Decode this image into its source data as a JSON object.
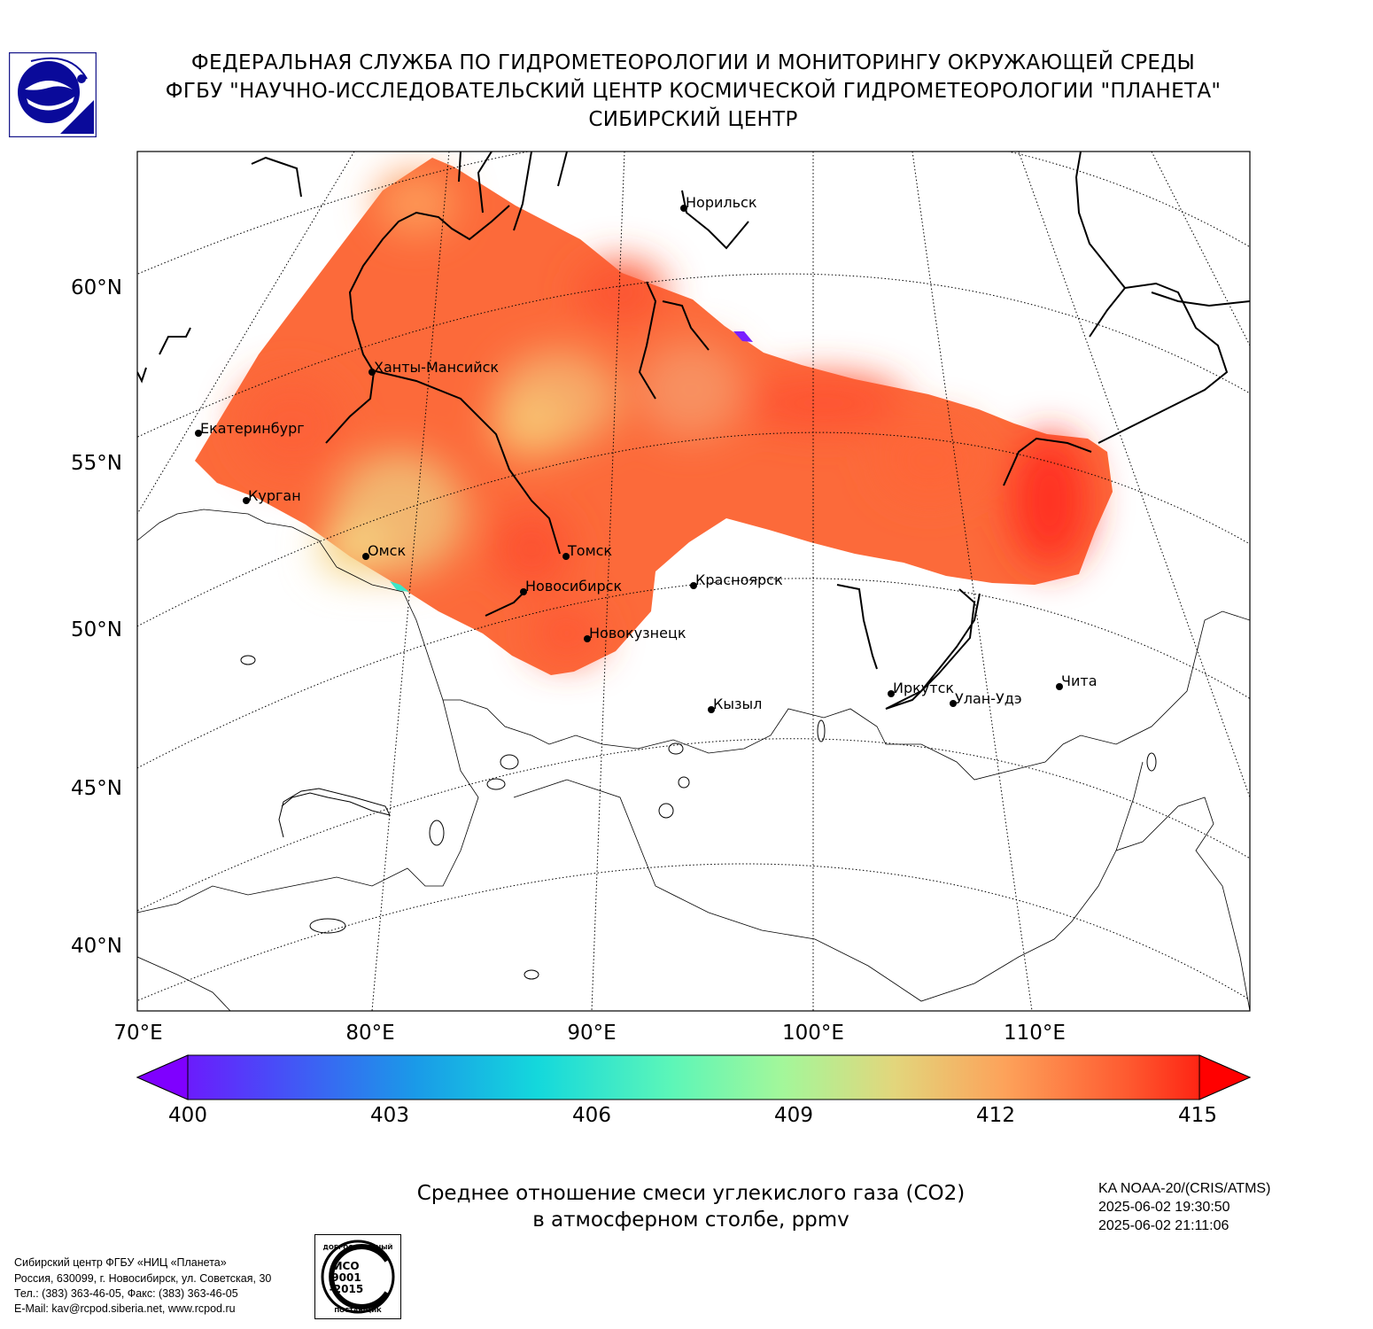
{
  "header": {
    "line1": "ФЕДЕРАЛЬНАЯ СЛУЖБА ПО ГИДРОМЕТЕОРОЛОГИИ И МОНИТОРИНГУ ОКРУЖАЮЩЕЙ СРЕДЫ",
    "line2": "ФГБУ \"НАУЧНО-ИССЛЕДОВАТЕЛЬСКИЙ ЦЕНТР КОСМИЧЕСКОЙ ГИДРОМЕТЕОРОЛОГИИ \"ПЛАНЕТА\"",
    "line3": "СИБИРСКИЙ ЦЕНТР"
  },
  "logo_icon": "roshydromet-logo",
  "map": {
    "lat_labels": [
      "60°N",
      "55°N",
      "50°N",
      "45°N",
      "40°N"
    ],
    "lon_labels": [
      "70°E",
      "80°E",
      "90°E",
      "100°E",
      "110°E"
    ],
    "cities": [
      {
        "name": "Норильск"
      },
      {
        "name": "Ханты-Мансийск"
      },
      {
        "name": "Екатеринбург"
      },
      {
        "name": "Курган"
      },
      {
        "name": "Омск"
      },
      {
        "name": "Томск"
      },
      {
        "name": "Новосибирск"
      },
      {
        "name": "Красноярск"
      },
      {
        "name": "Новокузнецк"
      },
      {
        "name": "Кызыл"
      },
      {
        "name": "Иркутск"
      },
      {
        "name": "Улан-Удэ"
      },
      {
        "name": "Чита"
      }
    ]
  },
  "colorbar": {
    "min": 400,
    "max": 415,
    "ticks": [
      "400",
      "403",
      "406",
      "409",
      "412",
      "415"
    ],
    "colormap": "rainbow",
    "low_color": "#7f00ff",
    "high_color": "#ff0000"
  },
  "caption": {
    "line1": "Среднее отношение смеси углекислого газа (CO2)",
    "line2": "в атмосферном столбе, ppmv"
  },
  "satellite": {
    "name": "KA NOAA-20/(CRIS/ATMS)",
    "time_start": "2025-06-02 19:30:50",
    "time_end": "2025-06-02 21:11:06"
  },
  "organization": {
    "line1": "Сибирский центр ФГБУ «НИЦ «Планета»",
    "line2": "Россия, 630099, г. Новосибирск, ул. Советская, 30",
    "line3": "Тел.: (383) 363-46-05, Факс: (383) 363-46-05",
    "line4": "E-Mail: kav@rcpod.siberia.net, www.rcpod.ru"
  },
  "iso_badge": {
    "top_text": "ДОБРОСОВЕСТНЫЙ",
    "l1": "ИСО",
    "l2": "9001",
    "l3": "-2015",
    "bottom_text": "ПОСТАВЩИК"
  }
}
